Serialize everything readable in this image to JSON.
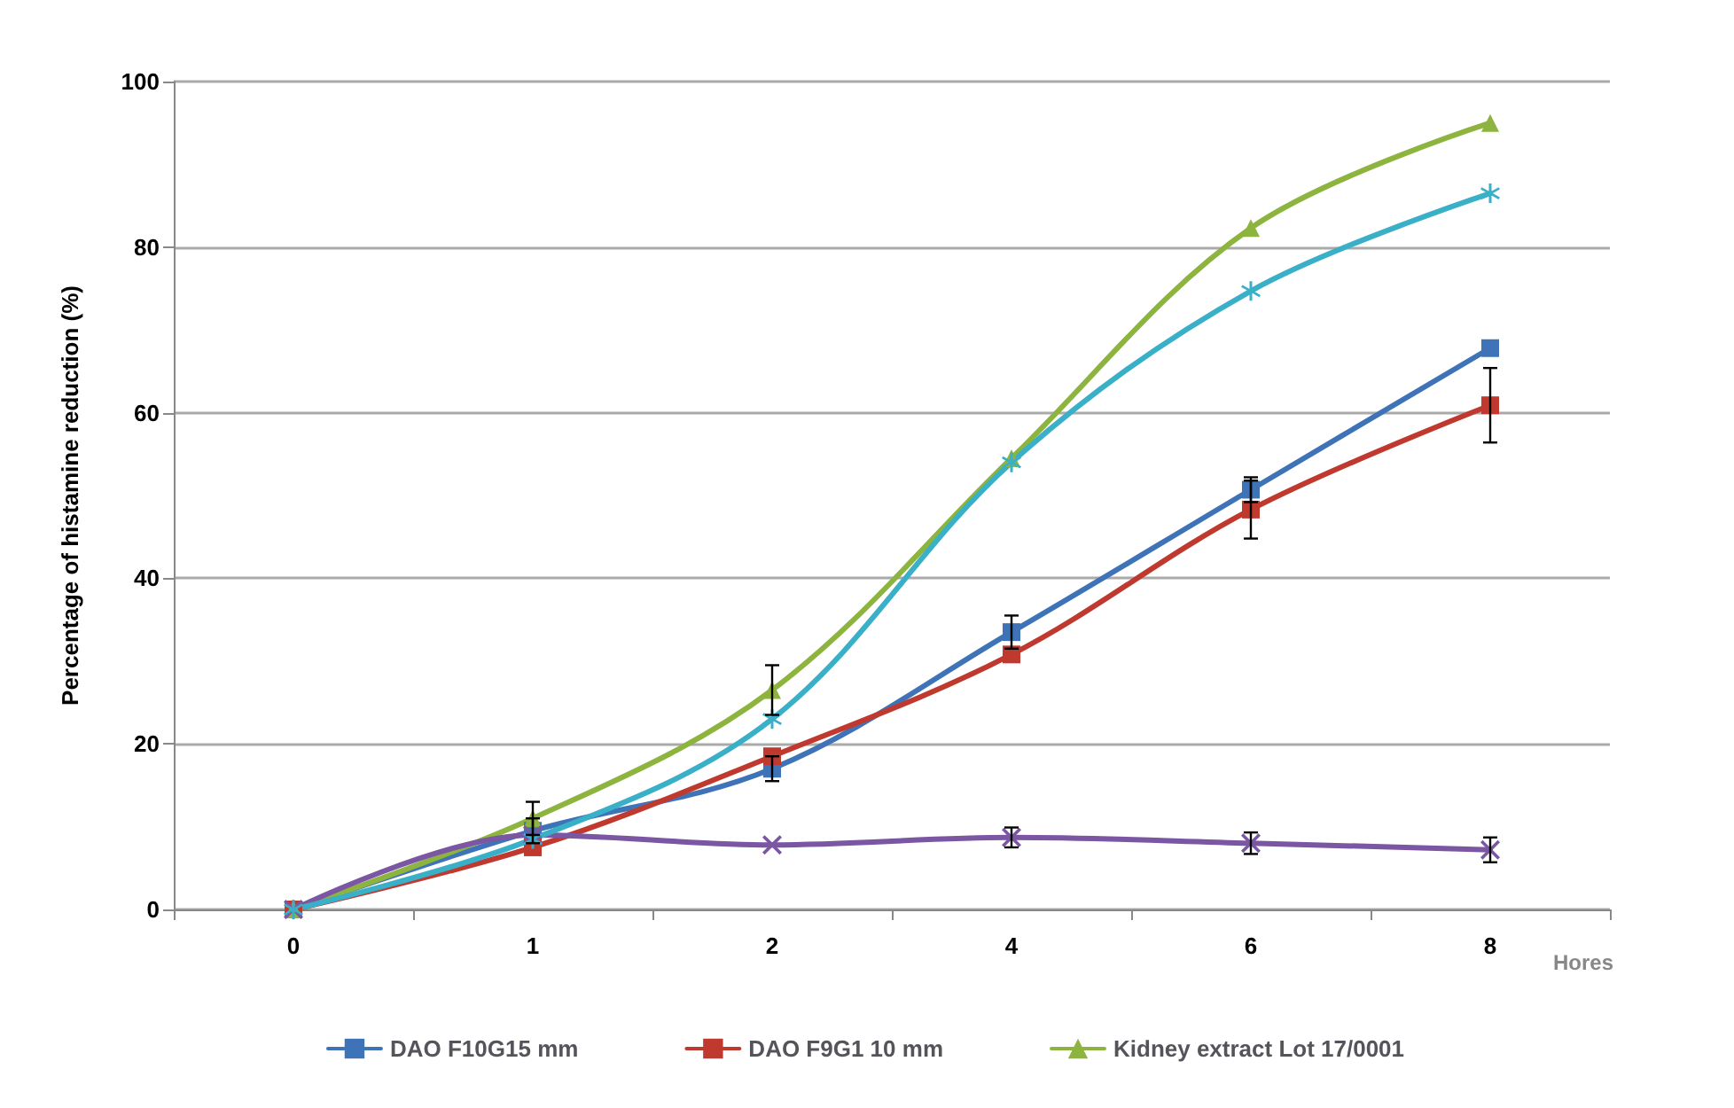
{
  "chart_data": {
    "type": "line",
    "xlabel": "Hores",
    "ylabel": "Percentage of histamine reduction (%)",
    "categories": [
      "0",
      "1",
      "2",
      "4",
      "6",
      "8"
    ],
    "series": [
      {
        "name": "DAO F10G15 mm",
        "color": "#3f73b8",
        "marker": "square",
        "values": [
          0,
          9.5,
          17,
          33.5,
          50.7,
          67.8
        ],
        "errors": [
          null,
          1.5,
          1.5,
          2,
          1.5,
          null
        ]
      },
      {
        "name": "DAO F9G1 10 mm",
        "color": "#c0392f",
        "marker": "square",
        "values": [
          0,
          7.5,
          18.5,
          30.8,
          48.3,
          60.9
        ],
        "errors": [
          null,
          null,
          null,
          null,
          3.5,
          4.5
        ]
      },
      {
        "name": "Kidney extract Lot 17/0001",
        "color": "#8db43e",
        "marker": "triangle",
        "values": [
          0,
          11,
          26.5,
          54.5,
          82.3,
          95
        ],
        "errors": [
          null,
          2,
          3,
          null,
          null,
          null
        ]
      },
      {
        "color": "#7b57a3",
        "marker": "cross",
        "values": [
          0,
          9,
          7.8,
          8.7,
          8,
          7.2
        ],
        "errors": [
          null,
          null,
          null,
          1.2,
          1.3,
          1.5
        ]
      },
      {
        "color": "#3ab0c8",
        "marker": "star",
        "values": [
          0,
          8.5,
          23,
          54,
          74.7,
          86.5
        ]
      }
    ],
    "ylim": [
      0,
      100
    ],
    "yticks": [
      0,
      20,
      40,
      60,
      80,
      100
    ],
    "grid": "y",
    "legend": "bottom",
    "line_style": "solid"
  }
}
